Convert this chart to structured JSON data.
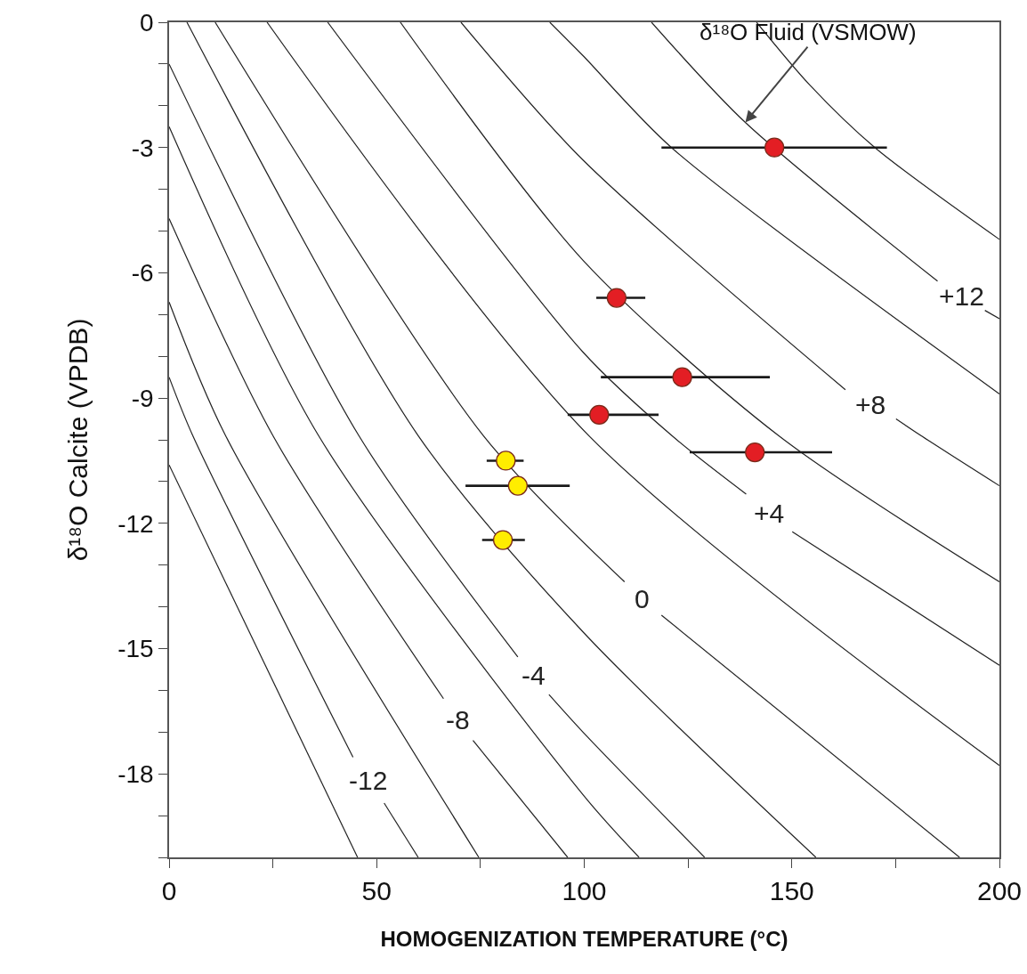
{
  "chart_data": {
    "type": "scatter",
    "xlabel": "HOMOGENIZATION TEMPERATURE (°C)",
    "ylabel": "δ¹⁸O Calcite (VPDB)",
    "xlim": [
      0,
      200
    ],
    "ylim": [
      -20,
      0
    ],
    "xticks": [
      0,
      {
        "value": 25,
        "label": null
      },
      50,
      {
        "value": 75,
        "label": null
      },
      100,
      {
        "value": 125,
        "label": null
      },
      150,
      {
        "value": 175,
        "label": null
      },
      200
    ],
    "yticks": [
      0,
      {
        "value": -1,
        "label": null
      },
      {
        "value": -2,
        "label": null
      },
      -3,
      {
        "value": -4,
        "label": null
      },
      {
        "value": -5,
        "label": null
      },
      -6,
      {
        "value": -7,
        "label": null
      },
      {
        "value": -8,
        "label": null
      },
      -9,
      {
        "value": -10,
        "label": null
      },
      {
        "value": -11,
        "label": null
      },
      -12,
      {
        "value": -13,
        "label": null
      },
      {
        "value": -14,
        "label": null
      },
      -15,
      {
        "value": -16,
        "label": null
      },
      {
        "value": -17,
        "label": null
      },
      -18,
      {
        "value": -19,
        "label": null
      },
      {
        "value": -20,
        "label": null
      }
    ],
    "grid": false,
    "legend": false,
    "series": [
      {
        "type": "line",
        "color": "#222222",
        "marker": "none",
        "x": [
          0,
          45.4
        ],
        "values": [
          -10.6,
          -20
        ]
      },
      {
        "type": "line",
        "name": "-12",
        "color": "#222222",
        "marker": "none",
        "x": [
          0,
          5.7,
          44.3,
          48,
          51.8,
          60
        ],
        "values": [
          -8.5,
          -9.9,
          -17.6,
          null,
          -18.7,
          -20
        ]
      },
      {
        "type": "line",
        "color": "#222222",
        "marker": "none",
        "x": [
          0,
          13.6,
          74.6
        ],
        "values": [
          -6.7,
          -9.9,
          -20
        ]
      },
      {
        "type": "line",
        "name": "-8",
        "color": "#222222",
        "marker": "none",
        "x": [
          0,
          25,
          66.1,
          69.6,
          73.2,
          96
        ],
        "values": [
          -4.7,
          -9.9,
          -16.2,
          null,
          -17.2,
          -20
        ]
      },
      {
        "type": "line",
        "color": "#222222",
        "marker": "none",
        "x": [
          0,
          36,
          99.7,
          113.2
        ],
        "values": [
          -2.5,
          -9.9,
          -18.5,
          -20
        ]
      },
      {
        "type": "line",
        "name": "-4",
        "color": "#222222",
        "marker": "none",
        "x": [
          0,
          45.7,
          84,
          87.8,
          91.5,
          99.7,
          129
        ],
        "values": [
          -1,
          -9.9,
          -15.2,
          null,
          -16.1,
          -17,
          -20
        ]
      },
      {
        "type": "line",
        "color": "#222222",
        "marker": "none",
        "x": [
          4.3,
          60,
          99.7,
          155.8
        ],
        "values": [
          0,
          -9.9,
          -14.6,
          -20
        ]
      },
      {
        "type": "line",
        "name": "0",
        "color": "#222222",
        "marker": "none",
        "x": [
          11.1,
          75.7,
          109.7,
          114,
          118.6,
          190.4
        ],
        "values": [
          0,
          -9.9,
          -13.4,
          null,
          -14.2,
          -20
        ]
      },
      {
        "type": "line",
        "color": "#222222",
        "marker": "none",
        "x": [
          23.6,
          101.1,
          200
        ],
        "values": [
          0,
          -9.9,
          -17.8
        ]
      },
      {
        "type": "line",
        "name": "+4",
        "color": "#222222",
        "marker": "none",
        "x": [
          38.2,
          99.7,
          121.1,
          139,
          144.5,
          150.1,
          200
        ],
        "values": [
          0,
          -7.9,
          -9.9,
          -11.3,
          null,
          -12.2,
          -15.4
        ]
      },
      {
        "type": "line",
        "color": "#222222",
        "marker": "none",
        "x": [
          55.7,
          99.7,
          146.8,
          200
        ],
        "values": [
          0,
          -5.7,
          -9.9,
          -13.4
        ]
      },
      {
        "type": "line",
        "name": "+8",
        "color": "#222222",
        "marker": "none",
        "x": [
          70.3,
          99.7,
          162.9,
          169,
          175.1,
          181.1,
          200
        ],
        "values": [
          0,
          -3.3,
          -8.8,
          null,
          -9.5,
          -9.9,
          -11.1
        ]
      },
      {
        "type": "line",
        "color": "#222222",
        "marker": "none",
        "x": [
          91.7,
          99.7,
          121,
          200
        ],
        "values": [
          0,
          -0.8,
          -3,
          -8.9
        ]
      },
      {
        "type": "line",
        "name": "+12",
        "color": "#222222",
        "marker": "none",
        "x": [
          116.2,
          138.8,
          185.1,
          190.8,
          196.5,
          200
        ],
        "values": [
          0,
          -2.4,
          -6.2,
          null,
          -6.9,
          -7.1
        ]
      },
      {
        "type": "line",
        "color": "#222222",
        "marker": "none",
        "x": [
          141.5,
          154.3,
          170,
          200
        ],
        "values": [
          0,
          -1.5,
          -3,
          -5.2
        ]
      },
      {
        "type": "scatter",
        "color": "#e31e24",
        "marker": "circle",
        "x": [
          145.8,
          107.8,
          123.6,
          103.6,
          141.1
        ],
        "values": [
          -3,
          -6.6,
          -8.5,
          -9.4,
          -10.3
        ],
        "xerrors": [
          [
            118.6,
            172.9
          ],
          [
            102.9,
            114.7
          ],
          [
            104,
            144.7
          ],
          [
            96,
            117.9
          ],
          [
            125.4,
            159.7
          ]
        ]
      },
      {
        "type": "scatter",
        "color": "#ffed00",
        "marker": "circle",
        "x": [
          81.1,
          84,
          80.4
        ],
        "values": [
          -10.5,
          -11.1,
          -12.4
        ],
        "xerrors": [
          [
            76.5,
            85.4
          ],
          [
            71.4,
            96.5
          ],
          [
            75.4,
            85.7
          ]
        ]
      }
    ],
    "annotations": [
      {
        "text": "δ¹⁸O Fluid (VSMOW)",
        "x": 138.8,
        "y": -2.4
      }
    ]
  }
}
